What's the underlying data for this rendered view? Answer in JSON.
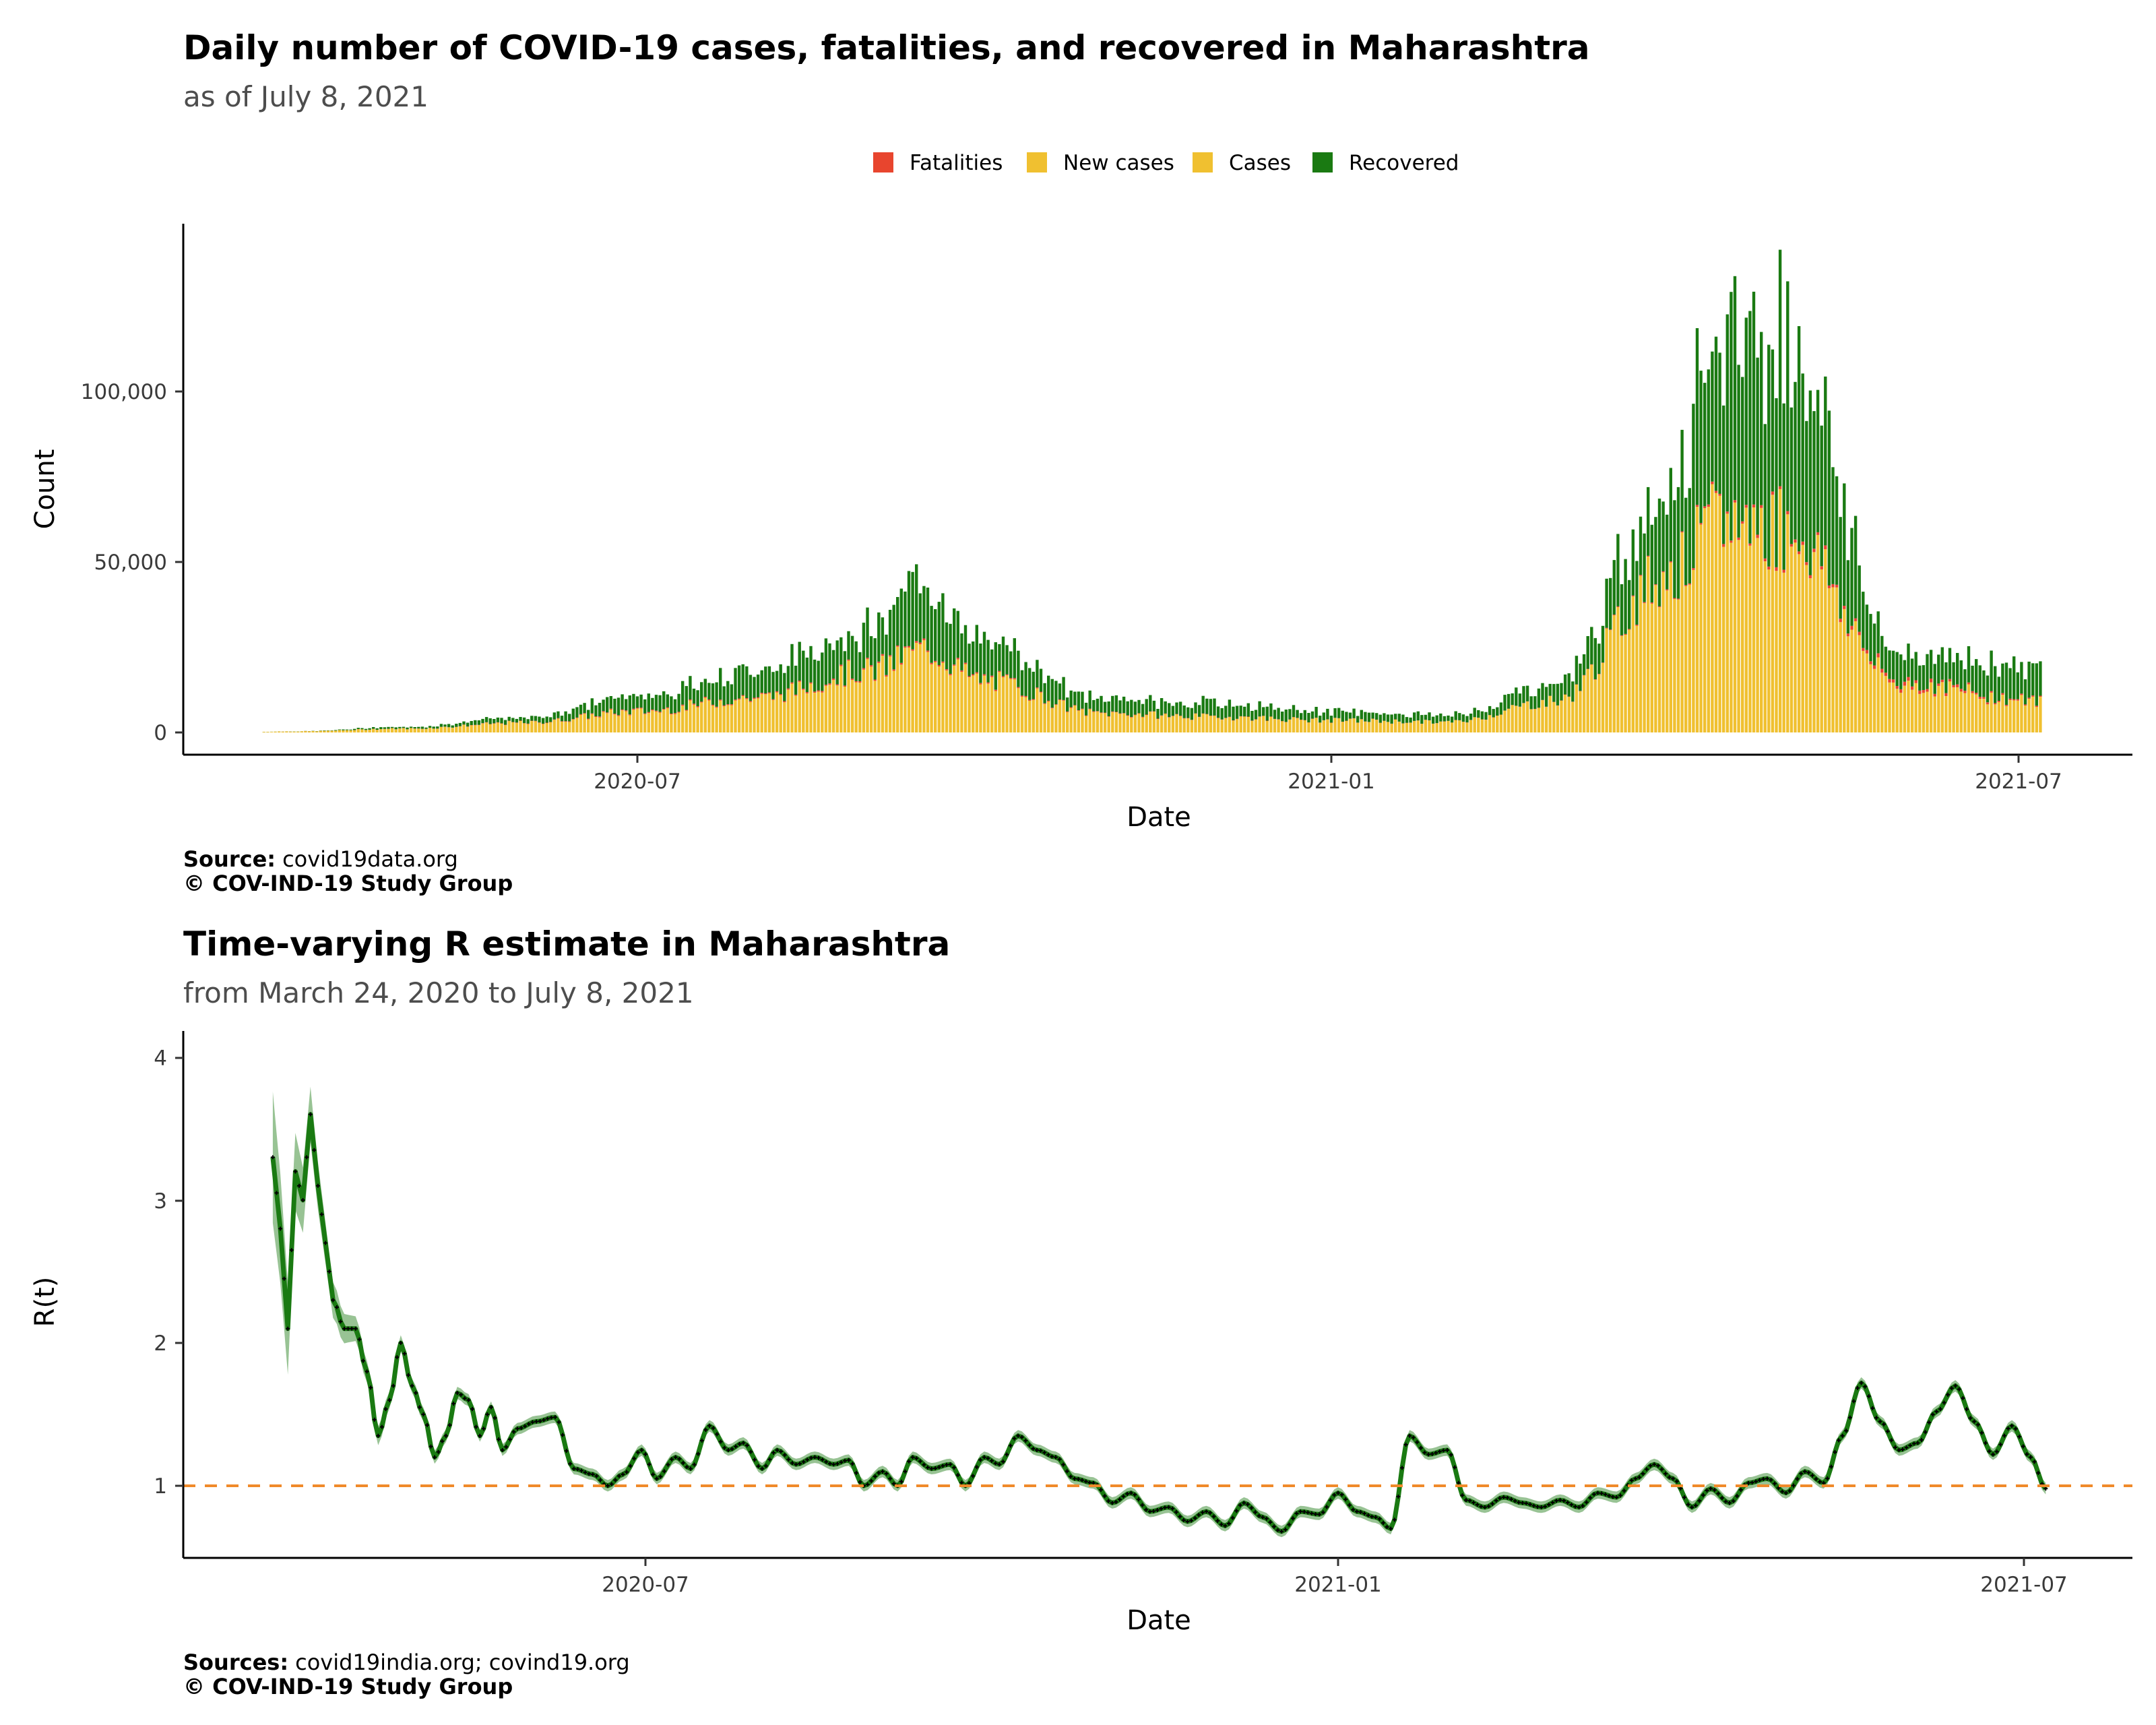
{
  "chart_data": [
    {
      "type": "bar",
      "stacked": true,
      "title": "Daily number of COVID-19 cases, fatalities, and recovered in Maharashtra",
      "subtitle": "as of July  8, 2021",
      "xlabel": "Date",
      "ylabel": "Count",
      "x_ticks": [
        "2020-07",
        "2021-01",
        "2021-07"
      ],
      "x_range": [
        "2020-03-14",
        "2021-07-18"
      ],
      "y_ticks": [
        "0",
        "50,000",
        "100,000"
      ],
      "ylim": [
        0,
        148000
      ],
      "legend_position": "top",
      "legend": [
        {
          "name": "Fatalities",
          "color": "#e8452e"
        },
        {
          "name": "New cases",
          "color": "#f0c030"
        },
        {
          "name": "Cases",
          "color": "#f0c030"
        },
        {
          "name": "Recovered",
          "color": "#1a7a12"
        }
      ],
      "grid": false,
      "caption_source_label": "Source:",
      "caption_source": "covid19data.org",
      "caption_credit": "© COV-IND-19 Study Group",
      "x": [
        "2020-03-15",
        "2020-04-01",
        "2020-05-01",
        "2020-06-01",
        "2020-07-01",
        "2020-08-01",
        "2020-09-01",
        "2020-09-15",
        "2020-10-01",
        "2020-11-01",
        "2020-12-01",
        "2021-01-01",
        "2021-02-01",
        "2021-03-01",
        "2021-04-01",
        "2021-04-15",
        "2021-05-01",
        "2021-06-01",
        "2021-07-08"
      ],
      "series": [
        {
          "name": "Cases",
          "values": [
            20,
            300,
            1100,
            2800,
            6000,
            10000,
            18000,
            24000,
            15000,
            5500,
            4500,
            3500,
            3000,
            9000,
            47000,
            62000,
            60000,
            14000,
            9000
          ]
        },
        {
          "name": "Fatalities",
          "values": [
            0,
            10,
            40,
            100,
            250,
            300,
            400,
            450,
            350,
            150,
            90,
            60,
            40,
            60,
            300,
            700,
            900,
            1000,
            300
          ]
        },
        {
          "name": "Recovered",
          "values": [
            0,
            30,
            500,
            1500,
            4500,
            8000,
            12000,
            20000,
            11000,
            4000,
            4000,
            2500,
            2000,
            5000,
            25000,
            58000,
            55000,
            8000,
            10000
          ]
        }
      ]
    },
    {
      "type": "line",
      "title": "Time-varying R estimate in Maharashtra",
      "subtitle": "from March 24, 2020 to July  8, 2021",
      "xlabel": "Date",
      "ylabel": "R(t)",
      "x_ticks": [
        "2020-07",
        "2021-01",
        "2021-07"
      ],
      "x_range": [
        "2020-03-14",
        "2021-07-18"
      ],
      "y_ticks": [
        "1",
        "2",
        "3",
        "4"
      ],
      "ylim": [
        0.5,
        4.2
      ],
      "reference_line": 1,
      "line_color": "#1a7a12",
      "reference_color": "#f08a2a",
      "grid": false,
      "caption_source_label": "Sources:",
      "caption_source": "covid19india.org; covind19.org",
      "caption_credit": "© COV-IND-19 Study Group",
      "points": [
        [
          "2020-03-24",
          3.3
        ],
        [
          "2020-03-26",
          2.8
        ],
        [
          "2020-03-28",
          2.1
        ],
        [
          "2020-03-30",
          3.2
        ],
        [
          "2020-04-01",
          3.0
        ],
        [
          "2020-04-03",
          3.6
        ],
        [
          "2020-04-05",
          3.1
        ],
        [
          "2020-04-07",
          2.7
        ],
        [
          "2020-04-09",
          2.3
        ],
        [
          "2020-04-12",
          2.1
        ],
        [
          "2020-04-15",
          2.1
        ],
        [
          "2020-04-18",
          1.8
        ],
        [
          "2020-04-21",
          1.35
        ],
        [
          "2020-04-24",
          1.6
        ],
        [
          "2020-04-27",
          2.0
        ],
        [
          "2020-04-30",
          1.7
        ],
        [
          "2020-05-03",
          1.5
        ],
        [
          "2020-05-06",
          1.2
        ],
        [
          "2020-05-09",
          1.35
        ],
        [
          "2020-05-12",
          1.65
        ],
        [
          "2020-05-15",
          1.6
        ],
        [
          "2020-05-18",
          1.35
        ],
        [
          "2020-05-21",
          1.55
        ],
        [
          "2020-05-24",
          1.25
        ],
        [
          "2020-05-28",
          1.4
        ],
        [
          "2020-06-02",
          1.45
        ],
        [
          "2020-06-07",
          1.48
        ],
        [
          "2020-06-12",
          1.12
        ],
        [
          "2020-06-17",
          1.08
        ],
        [
          "2020-06-21",
          1.0
        ],
        [
          "2020-06-25",
          1.08
        ],
        [
          "2020-06-30",
          1.25
        ],
        [
          "2020-07-04",
          1.05
        ],
        [
          "2020-07-09",
          1.2
        ],
        [
          "2020-07-13",
          1.12
        ],
        [
          "2020-07-18",
          1.42
        ],
        [
          "2020-07-23",
          1.25
        ],
        [
          "2020-07-27",
          1.3
        ],
        [
          "2020-08-01",
          1.12
        ],
        [
          "2020-08-05",
          1.25
        ],
        [
          "2020-08-10",
          1.15
        ],
        [
          "2020-08-15",
          1.2
        ],
        [
          "2020-08-20",
          1.15
        ],
        [
          "2020-08-24",
          1.18
        ],
        [
          "2020-08-28",
          1.0
        ],
        [
          "2020-09-02",
          1.1
        ],
        [
          "2020-09-06",
          1.0
        ],
        [
          "2020-09-10",
          1.2
        ],
        [
          "2020-09-15",
          1.12
        ],
        [
          "2020-09-20",
          1.15
        ],
        [
          "2020-09-24",
          1.0
        ],
        [
          "2020-09-29",
          1.2
        ],
        [
          "2020-10-03",
          1.15
        ],
        [
          "2020-10-08",
          1.35
        ],
        [
          "2020-10-13",
          1.25
        ],
        [
          "2020-10-18",
          1.2
        ],
        [
          "2020-10-23",
          1.05
        ],
        [
          "2020-10-28",
          1.02
        ],
        [
          "2020-11-02",
          0.88
        ],
        [
          "2020-11-07",
          0.95
        ],
        [
          "2020-11-12",
          0.82
        ],
        [
          "2020-11-17",
          0.85
        ],
        [
          "2020-11-22",
          0.75
        ],
        [
          "2020-11-27",
          0.82
        ],
        [
          "2020-12-02",
          0.72
        ],
        [
          "2020-12-07",
          0.88
        ],
        [
          "2020-12-12",
          0.78
        ],
        [
          "2020-12-17",
          0.68
        ],
        [
          "2020-12-22",
          0.82
        ],
        [
          "2020-12-27",
          0.8
        ],
        [
          "2021-01-01",
          0.95
        ],
        [
          "2021-01-06",
          0.82
        ],
        [
          "2021-01-11",
          0.78
        ],
        [
          "2021-01-15",
          0.7
        ],
        [
          "2021-01-20",
          1.35
        ],
        [
          "2021-01-25",
          1.22
        ],
        [
          "2021-01-30",
          1.25
        ],
        [
          "2021-02-04",
          0.9
        ],
        [
          "2021-02-09",
          0.85
        ],
        [
          "2021-02-14",
          0.92
        ],
        [
          "2021-02-19",
          0.88
        ],
        [
          "2021-02-24",
          0.85
        ],
        [
          "2021-03-01",
          0.9
        ],
        [
          "2021-03-06",
          0.85
        ],
        [
          "2021-03-11",
          0.95
        ],
        [
          "2021-03-16",
          0.92
        ],
        [
          "2021-03-21",
          1.05
        ],
        [
          "2021-03-26",
          1.15
        ],
        [
          "2021-03-31",
          1.05
        ],
        [
          "2021-04-05",
          0.85
        ],
        [
          "2021-04-10",
          0.98
        ],
        [
          "2021-04-15",
          0.88
        ],
        [
          "2021-04-20",
          1.02
        ],
        [
          "2021-04-25",
          1.05
        ],
        [
          "2021-04-30",
          0.95
        ],
        [
          "2021-05-05",
          1.1
        ],
        [
          "2021-05-10",
          1.02
        ],
        [
          "2021-05-15",
          1.35
        ],
        [
          "2021-05-20",
          1.72
        ],
        [
          "2021-05-25",
          1.45
        ],
        [
          "2021-05-30",
          1.25
        ],
        [
          "2021-06-04",
          1.3
        ],
        [
          "2021-06-09",
          1.52
        ],
        [
          "2021-06-14",
          1.7
        ],
        [
          "2021-06-19",
          1.45
        ],
        [
          "2021-06-24",
          1.22
        ],
        [
          "2021-06-29",
          1.42
        ],
        [
          "2021-07-04",
          1.2
        ],
        [
          "2021-07-08",
          0.98
        ]
      ]
    }
  ]
}
